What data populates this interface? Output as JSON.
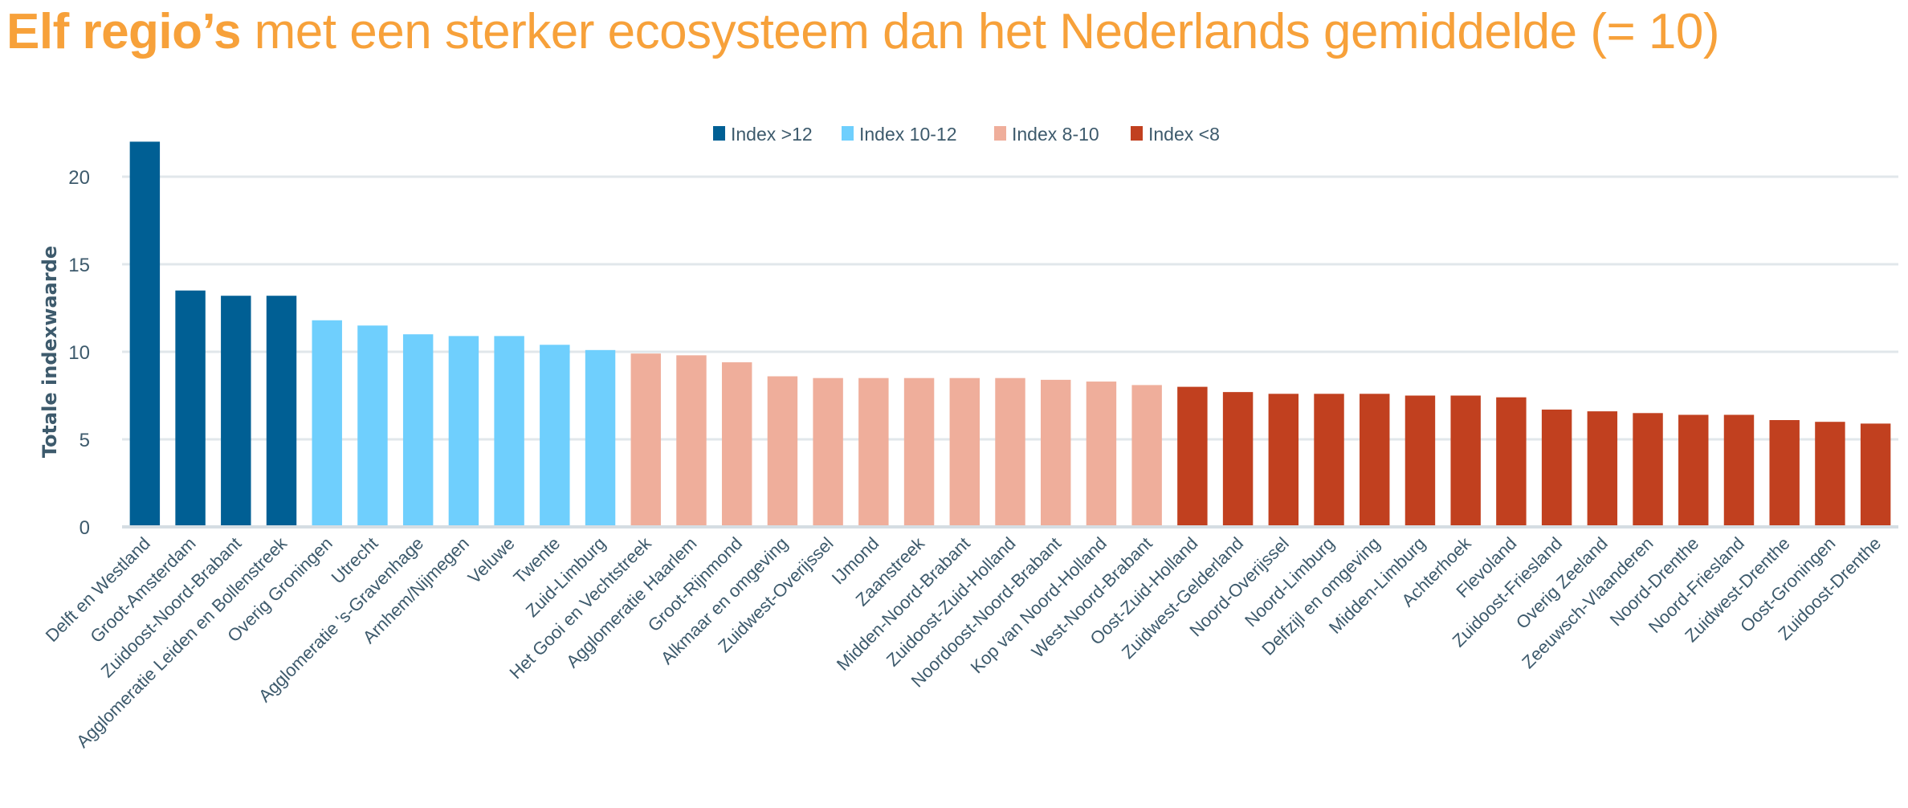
{
  "title": {
    "bold": "Elf regio’s",
    "rest": " met een sterker ecosysteem dan het Nederlands gemiddelde (= 10)"
  },
  "chart_data": {
    "type": "bar",
    "title": "Elf regio’s met een sterker ecosysteem dan het Nederlands gemiddelde (= 10)",
    "ylabel": "Totale indexwaarde",
    "xlabel": "",
    "ylim": [
      0,
      22
    ],
    "yticks": [
      0,
      5,
      10,
      15,
      20
    ],
    "grid": true,
    "legend_position": "top-center",
    "legend": [
      {
        "name": "Index >12",
        "color": "#005f94"
      },
      {
        "name": "Index 10-12",
        "color": "#6fcffd"
      },
      {
        "name": "Index 8-10",
        "color": "#efae9b"
      },
      {
        "name": "Index <8",
        "color": "#c1401f"
      }
    ],
    "categories": [
      "Delft en Westland",
      "Groot-Amsterdam",
      "Zuidoost-Noord-Brabant",
      "Agglomeratie Leiden en Bollenstreek",
      "Overig Groningen",
      "Utrecht",
      "Agglomeratie 's-Gravenhage",
      "Arnhem/Nijmegen",
      "Veluwe",
      "Twente",
      "Zuid-Limburg",
      "Het Gooi en Vechtstreek",
      "Agglomeratie Haarlem",
      "Groot-Rijnmond",
      "Alkmaar en omgeving",
      "Zuidwest-Overijssel",
      "IJmond",
      "Zaanstreek",
      "Midden-Noord-Brabant",
      "Zuidoost-Zuid-Holland",
      "Noordoost-Noord-Brabant",
      "Kop van Noord-Holland",
      "West-Noord-Brabant",
      "Oost-Zuid-Holland",
      "Zuidwest-Gelderland",
      "Noord-Overijssel",
      "Noord-Limburg",
      "Delfzijl en omgeving",
      "Midden-Limburg",
      "Achterhoek",
      "Flevoland",
      "Zuidoost-Friesland",
      "Overig Zeeland",
      "Zeeuwsch-Vlaanderen",
      "Noord-Drenthe",
      "Noord-Friesland",
      "Zuidwest-Drenthe",
      "Oost-Groningen",
      "Zuidoost-Drenthe"
    ],
    "values": [
      22.0,
      13.5,
      13.2,
      13.2,
      11.8,
      11.5,
      11.0,
      10.9,
      10.9,
      10.4,
      10.1,
      9.9,
      9.8,
      9.4,
      8.6,
      8.5,
      8.5,
      8.5,
      8.5,
      8.5,
      8.4,
      8.3,
      8.1,
      8.0,
      7.7,
      7.6,
      7.6,
      7.6,
      7.5,
      7.5,
      7.4,
      6.7,
      6.6,
      6.5,
      6.4,
      6.4,
      6.1,
      6.0,
      5.9
    ],
    "groups": [
      0,
      0,
      0,
      0,
      1,
      1,
      1,
      1,
      1,
      1,
      1,
      2,
      2,
      2,
      2,
      2,
      2,
      2,
      2,
      2,
      2,
      2,
      2,
      3,
      3,
      3,
      3,
      3,
      3,
      3,
      3,
      3,
      3,
      3,
      3,
      3,
      3,
      3,
      3
    ]
  }
}
